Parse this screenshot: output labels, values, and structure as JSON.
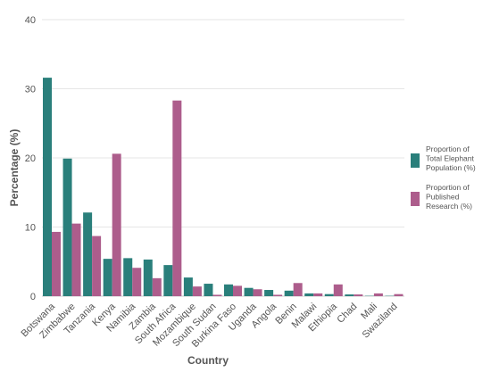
{
  "chart_data": {
    "type": "bar",
    "title": "",
    "xlabel": "Country",
    "ylabel": "Percentage (%)",
    "ylim": [
      0,
      40
    ],
    "yticks": [
      0,
      10,
      20,
      30,
      40
    ],
    "grid": true,
    "legend_position": "right",
    "categories": [
      "Botswana",
      "Zimbabwe",
      "Tanzania",
      "Kenya",
      "Namibia",
      "Zambia",
      "South Africa",
      "Mozambique",
      "South Sudan",
      "Burkina Faso",
      "Uganda",
      "Angola",
      "Benin",
      "Malawi",
      "Ethiopia",
      "Chad",
      "Mali",
      "Swaziland"
    ],
    "series": [
      {
        "name": "Proportion of Total Elephant Population (%)",
        "legend_lines": [
          "Proportion of",
          "Total Elephant",
          "Population (%)"
        ],
        "color": "#2a7f7b",
        "values": [
          31.6,
          19.9,
          12.1,
          5.4,
          5.5,
          5.3,
          4.5,
          2.7,
          1.8,
          1.7,
          1.2,
          0.9,
          0.8,
          0.4,
          0.3,
          0.25,
          0.05,
          0.05
        ]
      },
      {
        "name": "Proportion of Published Research (%)",
        "legend_lines": [
          "Proportion of",
          "Published",
          "Research (%)"
        ],
        "color": "#ad5d8c",
        "values": [
          9.3,
          10.5,
          8.7,
          20.6,
          4.1,
          2.6,
          28.3,
          1.4,
          0.2,
          1.5,
          1.0,
          0.2,
          1.9,
          0.4,
          1.7,
          0.25,
          0.4,
          0.3
        ]
      }
    ]
  }
}
